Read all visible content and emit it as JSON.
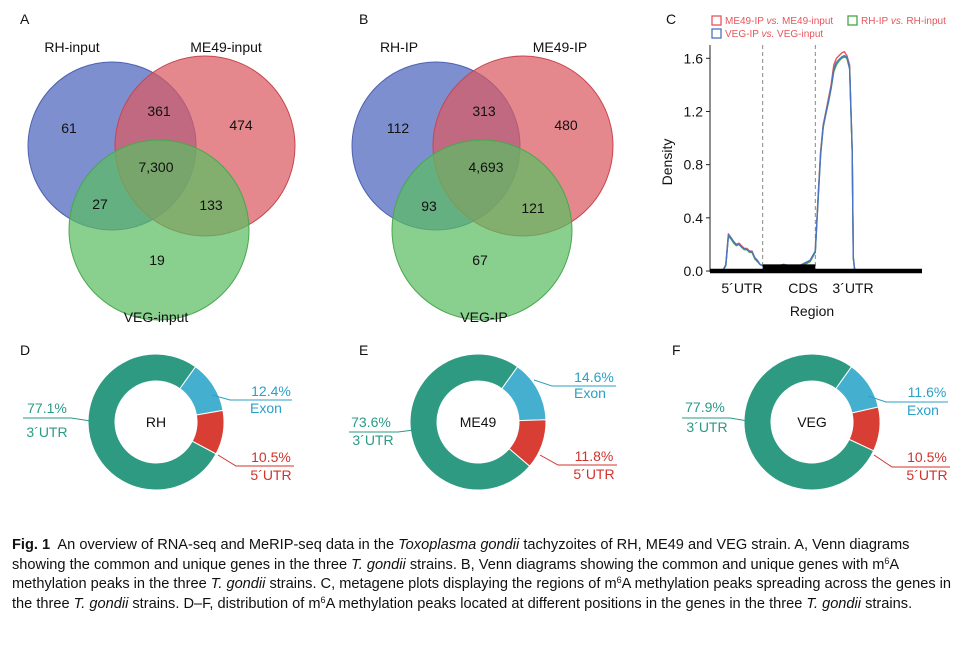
{
  "panels": {
    "A": {
      "letter": "A",
      "set_labels": [
        "RH-input",
        "ME49-input",
        "VEG-input"
      ],
      "regions": {
        "only1": "61",
        "only2": "474",
        "only3": "19",
        "r12": "361",
        "r13": "27",
        "r23": "133",
        "r123": "7,300"
      }
    },
    "B": {
      "letter": "B",
      "set_labels": [
        "RH-IP",
        "ME49-IP",
        "VEG-IP"
      ],
      "regions": {
        "only1": "112",
        "only2": "480",
        "only3": "67",
        "r12": "313",
        "r13": "93",
        "r23": "121",
        "r123": "4,693"
      }
    },
    "C": {
      "letter": "C",
      "ylabel": "Density",
      "xlabel": "Region",
      "region_labels": [
        "5´UTR",
        "CDS",
        "3´UTR"
      ],
      "legend": [
        {
          "prefix": "ME49-IP ",
          "vs": "vs.",
          "suffix": " ME49-input",
          "color": "#e8555b"
        },
        {
          "prefix": "RH-IP ",
          "vs": "vs.",
          "suffix": " RH-input",
          "color": "#44a646"
        },
        {
          "prefix": "VEG-IP ",
          "vs": "vs.",
          "suffix": " VEG-input",
          "color": "#4a73c4"
        }
      ]
    },
    "D": {
      "letter": "D",
      "center": "RH",
      "slices": [
        {
          "name": "3´UTR",
          "pct": "77.1%",
          "value": 77.1
        },
        {
          "name": "Exon",
          "pct": "12.4%",
          "value": 12.4
        },
        {
          "name": "5´UTR",
          "pct": "10.5%",
          "value": 10.5
        }
      ]
    },
    "E": {
      "letter": "E",
      "center": "ME49",
      "slices": [
        {
          "name": "3´UTR",
          "pct": "73.6%",
          "value": 73.6
        },
        {
          "name": "Exon",
          "pct": "14.6%",
          "value": 14.6
        },
        {
          "name": "5´UTR",
          "pct": "11.8%",
          "value": 11.8
        }
      ]
    },
    "F": {
      "letter": "F",
      "center": "VEG",
      "slices": [
        {
          "name": "3´UTR",
          "pct": "77.9%",
          "value": 77.9
        },
        {
          "name": "Exon",
          "pct": "11.6%",
          "value": 11.6
        },
        {
          "name": "5´UTR",
          "pct": "10.5%",
          "value": 10.5
        }
      ]
    }
  },
  "colors": {
    "venn1": "#5a6fc2",
    "venn2": "#da5a62",
    "venn3": "#5cbd62",
    "utr3": "#2e9a82",
    "exon": "#44afcf",
    "utr5": "#d83e34",
    "utr3_text": "#2a9a86",
    "exon_text": "#2aa0c6",
    "utr5_text": "#d0332e"
  },
  "chart_data": {
    "type": "line",
    "title": "",
    "xlabel": "Region",
    "ylabel": "Density",
    "x_tick_labels": [
      "5´UTR",
      "CDS",
      "3´UTR"
    ],
    "y_ticks": [
      "0.0",
      "0.4",
      "0.8",
      "1.2",
      "1.6"
    ],
    "ylim": [
      0,
      1.7
    ],
    "xlim": [
      0,
      3
    ],
    "region_boundaries": [
      1,
      2
    ],
    "series": [
      {
        "name": "ME49-IP vs. ME49-input",
        "color": "#e8555b",
        "x": [
          0,
          0.1,
          0.2,
          0.25,
          0.3,
          0.35,
          0.4,
          0.45,
          0.5,
          0.55,
          0.6,
          0.65,
          0.7,
          0.75,
          0.8,
          0.85,
          0.9,
          0.95,
          1.0,
          1.1,
          1.2,
          1.3,
          1.4,
          1.5,
          1.6,
          1.7,
          1.8,
          1.9,
          2.0,
          2.05,
          2.1,
          2.15,
          2.2,
          2.25,
          2.3,
          2.35,
          2.4,
          2.45,
          2.5,
          2.55,
          2.6,
          2.65,
          2.7,
          2.72,
          2.75,
          2.8,
          2.9,
          3.0
        ],
        "y": [
          0,
          0,
          0,
          0.01,
          0.05,
          0.28,
          0.25,
          0.22,
          0.2,
          0.21,
          0.19,
          0.17,
          0.17,
          0.15,
          0.15,
          0.1,
          0.08,
          0.05,
          0.04,
          0.03,
          0.03,
          0.04,
          0.05,
          0.04,
          0.04,
          0.04,
          0.06,
          0.08,
          0.15,
          0.55,
          0.9,
          1.1,
          1.2,
          1.3,
          1.4,
          1.55,
          1.6,
          1.62,
          1.64,
          1.65,
          1.62,
          1.55,
          0.9,
          0.1,
          0,
          0,
          0,
          0
        ]
      },
      {
        "name": "RH-IP vs. RH-input",
        "color": "#44a646",
        "x": [
          0,
          0.1,
          0.2,
          0.25,
          0.3,
          0.35,
          0.4,
          0.45,
          0.5,
          0.55,
          0.6,
          0.65,
          0.7,
          0.75,
          0.8,
          0.85,
          0.9,
          0.95,
          1.0,
          1.1,
          1.2,
          1.3,
          1.4,
          1.5,
          1.6,
          1.7,
          1.8,
          1.9,
          2.0,
          2.05,
          2.1,
          2.15,
          2.2,
          2.25,
          2.3,
          2.35,
          2.4,
          2.45,
          2.5,
          2.55,
          2.6,
          2.65,
          2.7,
          2.72,
          2.75,
          2.8,
          2.9,
          3.0
        ],
        "y": [
          0,
          0,
          0,
          0.01,
          0.04,
          0.26,
          0.24,
          0.21,
          0.19,
          0.2,
          0.18,
          0.16,
          0.16,
          0.14,
          0.14,
          0.09,
          0.07,
          0.05,
          0.04,
          0.03,
          0.03,
          0.04,
          0.04,
          0.04,
          0.04,
          0.04,
          0.05,
          0.07,
          0.14,
          0.52,
          0.88,
          1.08,
          1.18,
          1.27,
          1.37,
          1.5,
          1.55,
          1.58,
          1.6,
          1.61,
          1.6,
          1.52,
          0.9,
          0.1,
          0,
          0,
          0,
          0
        ]
      },
      {
        "name": "VEG-IP vs. VEG-input",
        "color": "#4a73c4",
        "x": [
          0,
          0.1,
          0.2,
          0.25,
          0.3,
          0.35,
          0.4,
          0.45,
          0.5,
          0.55,
          0.6,
          0.65,
          0.7,
          0.75,
          0.8,
          0.85,
          0.9,
          0.95,
          1.0,
          1.1,
          1.2,
          1.3,
          1.4,
          1.5,
          1.6,
          1.7,
          1.8,
          1.9,
          2.0,
          2.05,
          2.1,
          2.15,
          2.2,
          2.25,
          2.3,
          2.35,
          2.4,
          2.45,
          2.5,
          2.55,
          2.6,
          2.65,
          2.7,
          2.72,
          2.75,
          2.8,
          2.9,
          3.0
        ],
        "y": [
          0,
          0,
          0,
          0.01,
          0.04,
          0.27,
          0.25,
          0.22,
          0.2,
          0.2,
          0.18,
          0.17,
          0.16,
          0.15,
          0.14,
          0.1,
          0.08,
          0.05,
          0.04,
          0.03,
          0.03,
          0.04,
          0.05,
          0.04,
          0.04,
          0.04,
          0.06,
          0.08,
          0.15,
          0.53,
          0.87,
          1.09,
          1.19,
          1.28,
          1.38,
          1.52,
          1.57,
          1.59,
          1.61,
          1.62,
          1.61,
          1.53,
          0.9,
          0.1,
          0,
          0,
          0,
          0
        ]
      }
    ]
  },
  "caption": {
    "fig_label": "Fig. 1",
    "t1": "An overview of RNA-seq and MeRIP-seq data in the ",
    "t2": "Toxoplasma gondii",
    "t3": " tachyzoites of RH, ME49 and VEG strain.  A, Venn diagrams showing the common and unique genes in the three ",
    "t4": "T. gondii",
    "t5": " strains.  B, Venn diagrams showing the common and unique genes with m",
    "t6": "6",
    "t7": "A methylation peaks in the three ",
    "t8": "T. gondii",
    "t9": " strains.  C, metagene plots displaying the regions of m",
    "t10": "6",
    "t11": "A methylation peaks spreading across the genes in the three ",
    "t12": "T. gondii",
    "t13": " strains.  D–F, distribution of m",
    "t14": "6",
    "t15": "A methylation peaks located at different positions in the genes in the three ",
    "t16": "T. gondii",
    "t17": " strains."
  }
}
